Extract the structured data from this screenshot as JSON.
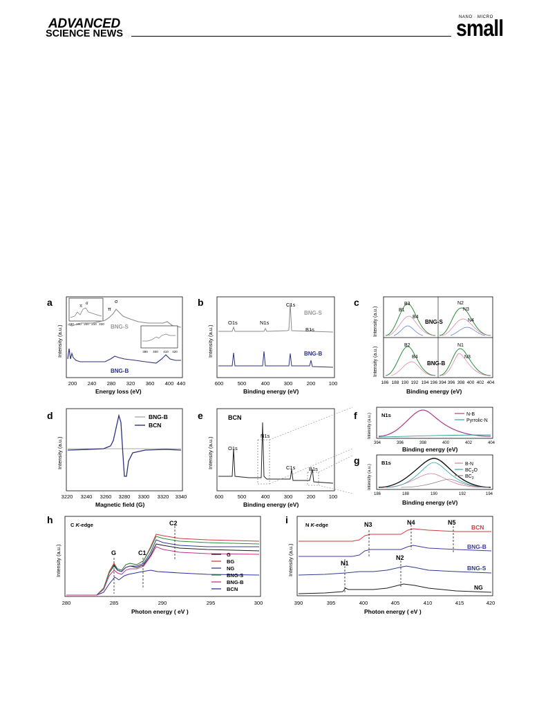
{
  "header": {
    "logo_line1": "ADVANCED",
    "logo_line2": "SCIENCE NEWS",
    "journal_top": "NANO · MICRO",
    "journal_name": "small"
  },
  "figure": {
    "panel_labels": [
      "a",
      "b",
      "c",
      "d",
      "e",
      "f",
      "g",
      "h",
      "i"
    ],
    "a": {
      "xlabel": "Energy loss (eV)",
      "ylabel": "Intensity (a.u.)",
      "xticks": [
        "200",
        "240",
        "280",
        "320",
        "360",
        "400",
        "440"
      ],
      "traces": [
        "BNG-S",
        "BNG-B"
      ],
      "inset_left_ticks": [
        "180",
        "190",
        "200",
        "210",
        "220"
      ],
      "inset_right_ticks": [
        "390",
        "400",
        "410",
        "420"
      ],
      "pi_label": "π",
      "sigma_label": "σ",
      "star": "*"
    },
    "b": {
      "xlabel": "Binding energy (eV)",
      "ylabel": "Intensity (a.u.)",
      "xticks": [
        "600",
        "500",
        "400",
        "300",
        "200",
        "100"
      ],
      "peaks": [
        "O1s",
        "N1s",
        "C1s",
        "B1s"
      ],
      "traces": [
        "BNG-S",
        "BNG-B"
      ]
    },
    "c": {
      "xlabel": "Binding energy (eV)",
      "ylabel": "Intensity (a.u.)",
      "xticks_left": [
        "186",
        "188",
        "190",
        "192",
        "194"
      ],
      "xticks_right": [
        "396",
        "398",
        "400",
        "402",
        "404"
      ],
      "xticks_mid": "196 394",
      "top_labels_left": [
        "B3",
        "B1",
        "B4"
      ],
      "top_labels_right": [
        "N2",
        "N3",
        "N4"
      ],
      "bottom_labels_left": [
        "B2",
        "B4"
      ],
      "bottom_labels_right": [
        "N1",
        "N3"
      ],
      "traces": [
        "BNG-S",
        "BNG-B"
      ]
    },
    "d": {
      "xlabel": "Magnetic field (G)",
      "ylabel": "Intensity (a.u.)",
      "xticks": [
        "3220",
        "3240",
        "3260",
        "3280",
        "3300",
        "3320",
        "3340"
      ],
      "legend": [
        "BNG-B",
        "BCN"
      ]
    },
    "e": {
      "xlabel": "Binding energy (eV)",
      "ylabel": "Intensity (a.u.)",
      "xticks": [
        "600",
        "500",
        "400",
        "300",
        "200",
        "100"
      ],
      "title": "BCN",
      "peaks": [
        "O1s",
        "N1s",
        "C1s",
        "B1s"
      ]
    },
    "f": {
      "xlabel": "Binding energy (eV)",
      "ylabel": "Intensity (a.u.)",
      "xticks": [
        "394",
        "396",
        "398",
        "400",
        "402",
        "404"
      ],
      "tag": "N1s",
      "legend": [
        "N-B",
        "Pyrrolic-N"
      ]
    },
    "g": {
      "xlabel": "Binding energy (eV)",
      "ylabel": "Intensity (a.u.)",
      "xticks": [
        "186",
        "188",
        "190",
        "192",
        "194"
      ],
      "tag": "B1s",
      "legend": [
        "B-N",
        "BC2O",
        "BC3"
      ],
      "legend_base": [
        "B-N",
        "BC",
        "O",
        "BC"
      ],
      "legend_sub": [
        "2",
        "3"
      ]
    },
    "h": {
      "xlabel": "Photon energy ( eV )",
      "ylabel": "Intensity (a.u.)",
      "xticks": [
        "280",
        "285",
        "290",
        "295",
        "300"
      ],
      "tag": "C K-edge",
      "tag_base": "C ",
      "tag_italic": "K",
      "tag_tail": "-edge",
      "markers": [
        "G",
        "C1",
        "C2"
      ],
      "legend": [
        "G",
        "BG",
        "NG",
        "BNG-S",
        "BNG-B",
        "BCN"
      ],
      "colors": [
        "#1a1a1a",
        "#d33a3a",
        "#2d3a9e",
        "#2e8b3a",
        "#c0308a",
        "#2a2f9c"
      ]
    },
    "i": {
      "xlabel": "Photon energy ( eV )",
      "ylabel": "Intensity (a.u.)",
      "xticks": [
        "390",
        "395",
        "400",
        "405",
        "410",
        "415",
        "420"
      ],
      "tag": "N K-edge",
      "tag_base": "N ",
      "tag_italic": "K",
      "tag_tail": "-edge",
      "markers": [
        "N1",
        "N2",
        "N3",
        "N4",
        "N5"
      ],
      "traces": [
        "BCN",
        "BNG-B",
        "BNG-S",
        "NG"
      ],
      "colors": [
        "#d33a3a",
        "#3a3aa8",
        "#2d3a8e",
        "#1a1a1a"
      ]
    }
  }
}
